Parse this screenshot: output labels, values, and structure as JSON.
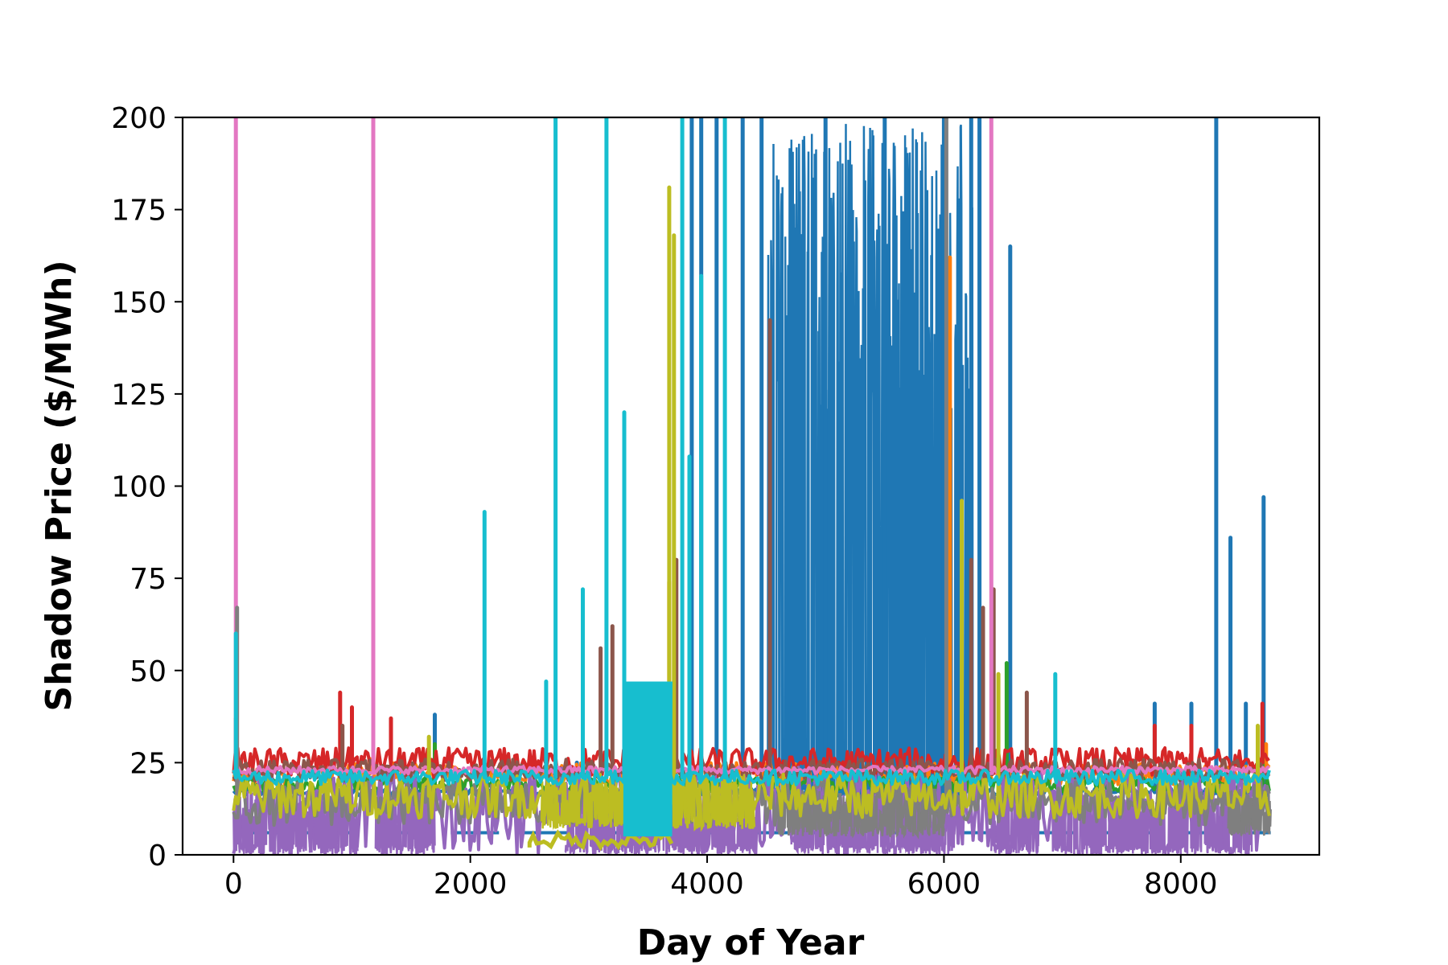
{
  "chart_data": {
    "type": "line",
    "title": "",
    "xlabel": "Day of Year",
    "ylabel": "Shadow Price ($/MWh)",
    "xlim": [
      -430,
      9170
    ],
    "ylim": [
      0,
      200
    ],
    "x_ticks": [
      0,
      2000,
      4000,
      6000,
      8000
    ],
    "y_ticks": [
      0,
      25,
      50,
      75,
      100,
      125,
      150,
      175,
      200
    ],
    "grid": false,
    "legend": "none",
    "x_extent": [
      0,
      8760
    ],
    "series": [
      {
        "color": "#1f77b4",
        "baseline": 17,
        "noise": 1,
        "spikes": [
          [
            1700,
            38
          ],
          [
            2900,
            25
          ],
          [
            3950,
            200
          ],
          [
            3870,
            200
          ],
          [
            4080,
            200
          ],
          [
            4300,
            200
          ],
          [
            4460,
            200
          ],
          [
            5000,
            200
          ],
          [
            5500,
            200
          ],
          [
            6000,
            200
          ],
          [
            6230,
            200
          ],
          [
            6300,
            200
          ],
          [
            6560,
            165
          ],
          [
            7780,
            41
          ],
          [
            8090,
            41
          ],
          [
            8300,
            200
          ],
          [
            8420,
            86
          ],
          [
            8550,
            41
          ],
          [
            8700,
            97
          ]
        ],
        "dense": [
          [
            4500,
            6250,
            200
          ]
        ],
        "secondary": 6
      },
      {
        "color": "#ff7f0e",
        "baseline": 22,
        "noise": 3,
        "spikes": [
          [
            1150,
            26
          ],
          [
            3680,
            74
          ],
          [
            3720,
            40
          ],
          [
            6050,
            162
          ],
          [
            8720,
            30
          ]
        ],
        "dense": []
      },
      {
        "color": "#2ca02c",
        "baseline": 19,
        "noise": 2,
        "spikes": [
          [
            1700,
            30
          ],
          [
            6530,
            52
          ],
          [
            8690,
            35
          ]
        ],
        "dense": []
      },
      {
        "color": "#d62728",
        "baseline": 25,
        "noise": 4,
        "spikes": [
          [
            20,
            37
          ],
          [
            900,
            44
          ],
          [
            1000,
            40
          ],
          [
            1330,
            37
          ],
          [
            7780,
            35
          ],
          [
            8090,
            35
          ],
          [
            8690,
            41
          ]
        ],
        "dense": []
      },
      {
        "color": "#9467bd",
        "baseline": 12,
        "noise": 12,
        "spikes": [],
        "dense": [
          [
            0,
            1050,
            18
          ],
          [
            1200,
            1700,
            18
          ],
          [
            2800,
            3700,
            18
          ],
          [
            3700,
            4400,
            14
          ],
          [
            4700,
            6100,
            18
          ],
          [
            6400,
            6800,
            18
          ],
          [
            6900,
            8600,
            18
          ]
        ]
      },
      {
        "color": "#8c564b",
        "baseline": 23,
        "noise": 3,
        "spikes": [
          [
            920,
            35
          ],
          [
            3100,
            56
          ],
          [
            3200,
            62
          ],
          [
            3740,
            80
          ],
          [
            4530,
            145
          ],
          [
            6230,
            80
          ],
          [
            6330,
            67
          ],
          [
            6420,
            72
          ],
          [
            6700,
            44
          ]
        ],
        "dense": []
      },
      {
        "color": "#e377c2",
        "baseline": 23,
        "noise": 1,
        "spikes": [
          [
            20,
            200
          ],
          [
            1180,
            200
          ],
          [
            6400,
            200
          ]
        ],
        "dense": []
      },
      {
        "color": "#7f7f7f",
        "baseline": 14,
        "noise": 6,
        "spikes": [
          [
            30,
            67
          ],
          [
            6020,
            200
          ]
        ],
        "dense": [
          [
            4600,
            6000,
            18
          ],
          [
            8400,
            8760,
            18
          ]
        ]
      },
      {
        "color": "#bcbd22",
        "baseline": 16,
        "noise": 6,
        "spikes": [
          [
            1650,
            32
          ],
          [
            3680,
            181
          ],
          [
            3720,
            168
          ],
          [
            6150,
            96
          ],
          [
            6460,
            49
          ],
          [
            8650,
            35
          ]
        ],
        "dense": [
          [
            2600,
            4400,
            22
          ]
        ],
        "low_band": [
          [
            2500,
            3700,
            2
          ]
        ]
      },
      {
        "color": "#17becf",
        "baseline": 21,
        "noise": 2,
        "spikes": [
          [
            20,
            60
          ],
          [
            2120,
            93
          ],
          [
            2640,
            47
          ],
          [
            2720,
            200
          ],
          [
            2950,
            72
          ],
          [
            3150,
            200
          ],
          [
            3300,
            120
          ],
          [
            3790,
            200
          ],
          [
            3850,
            108
          ],
          [
            3950,
            157
          ],
          [
            4150,
            200
          ],
          [
            6940,
            49
          ]
        ],
        "dense": [],
        "block": [
          [
            3300,
            3700,
            47,
            5
          ]
        ]
      }
    ]
  }
}
